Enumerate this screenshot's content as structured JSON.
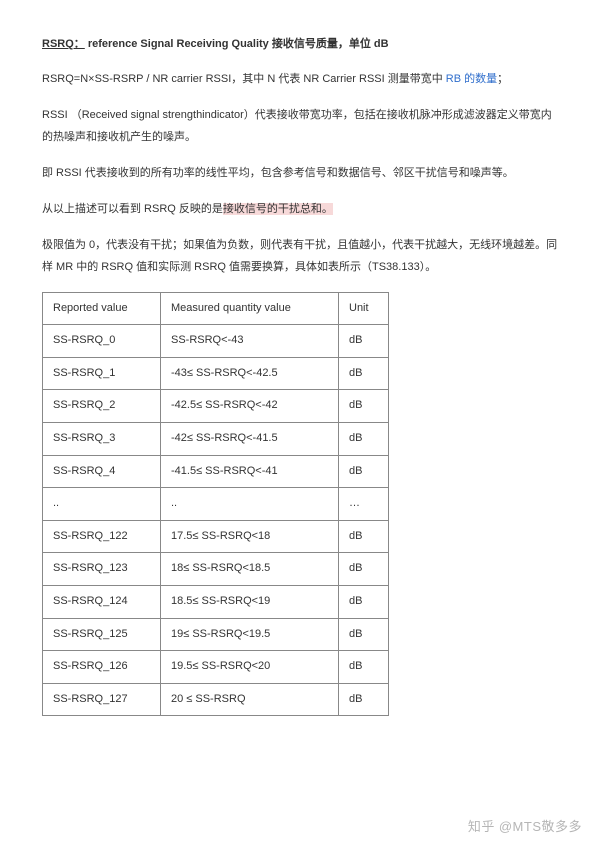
{
  "heading": {
    "term": "RSRQ：",
    "definition": "reference Signal Receiving Quality  接收信号质量，单位 dB"
  },
  "para1": {
    "pre": "RSRQ=N×SS-RSRP / NR carrier RSSI，其中 N 代表 NR Carrier RSSI 测量带宽中 ",
    "link": "RB 的数量",
    "post": "；"
  },
  "para2": "RSSI （Received signal strengthindicator）代表接收带宽功率，包括在接收机脉冲形成滤波器定义带宽内的热噪声和接收机产生的噪声。",
  "para3": "即 RSSI 代表接收到的所有功率的线性平均，包含参考信号和数据信号、邻区干扰信号和噪声等。",
  "para4": {
    "pre": "从以上描述可以看到 RSRQ 反映的是",
    "hl": "接收信号的干扰总和。"
  },
  "para5": "极限值为 0，代表没有干扰；如果值为负数，则代表有干扰，且值越小，代表干扰越大，无线环境越差。同样 MR 中的 RSRQ 值和实际测 RSRQ 值需要换算，具体如表所示（TS38.133）。",
  "table": {
    "columns": [
      "Reported value",
      "Measured quantity value",
      "Unit"
    ],
    "rows": [
      [
        "SS-RSRQ_0",
        "SS-RSRQ<-43",
        "dB"
      ],
      [
        "SS-RSRQ_1",
        "-43≤ SS-RSRQ<-42.5",
        "dB"
      ],
      [
        "SS-RSRQ_2",
        "-42.5≤ SS-RSRQ<-42",
        "dB"
      ],
      [
        "SS-RSRQ_3",
        "-42≤ SS-RSRQ<-41.5",
        "dB"
      ],
      [
        "SS-RSRQ_4",
        "-41.5≤ SS-RSRQ<-41",
        "dB"
      ],
      [
        "..",
        "..",
        "…"
      ],
      [
        "SS-RSRQ_122",
        "17.5≤ SS-RSRQ<18",
        "dB"
      ],
      [
        "SS-RSRQ_123",
        "18≤ SS-RSRQ<18.5",
        "dB"
      ],
      [
        "SS-RSRQ_124",
        "18.5≤ SS-RSRQ<19",
        "dB"
      ],
      [
        "SS-RSRQ_125",
        "19≤ SS-RSRQ<19.5",
        "dB"
      ],
      [
        "SS-RSRQ_126",
        "19.5≤ SS-RSRQ<20",
        "dB"
      ],
      [
        "SS-RSRQ_127",
        "20  ≤ SS-RSRQ",
        "dB"
      ]
    ],
    "col_widths": [
      "118px",
      "178px",
      "50px"
    ],
    "border_color": "#888888",
    "cell_padding": "7px 10px",
    "font_size": 11
  },
  "watermark": {
    "logo": "知乎",
    "handle": "@MTS敬多多"
  },
  "colors": {
    "text": "#333333",
    "link": "#2f6ecc",
    "highlight_bg": "#f7d9d9",
    "background": "#ffffff"
  },
  "typography": {
    "base_font_size": 11,
    "line_height_para": 2.0,
    "heading_weight": 700
  }
}
